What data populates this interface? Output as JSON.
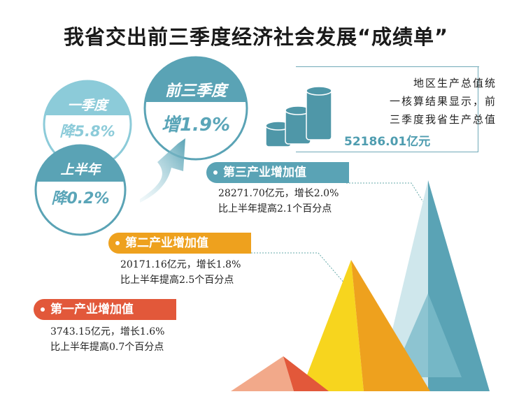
{
  "title": "我省交出前三季度经济社会发展“成绩单”",
  "circles": {
    "q1": {
      "label": "一季度",
      "value": "降5.8%"
    },
    "h1": {
      "label": "上半年",
      "value": "降0.2%"
    },
    "q1_3": {
      "label": "前三季度",
      "value": "增1.9%"
    }
  },
  "gdp": {
    "lines": [
      "地区生产总值统",
      "一核算结果显示，前",
      "三季度我省生产总值"
    ],
    "value": "52186.01亿元",
    "icon": "coin-stack-icon"
  },
  "industries": [
    {
      "label": "第三产业增加值",
      "line1": "28271.70亿元，增长2.0%",
      "line2": "比上半年提高2.1个百分点",
      "color": "#5aa3b5"
    },
    {
      "label": "第二产业增加值",
      "line1": "20171.16亿元，增长1.8%",
      "line2": "比上半年提高2.5个百分点",
      "color": "#eea11e"
    },
    {
      "label": "第一产业增加值",
      "line1": "3743.15亿元，增长1.6%",
      "line2": "比上半年提高0.7个百分点",
      "color": "#e2583a"
    }
  ],
  "colors": {
    "teal": "#5aa3b5",
    "light_teal": "#8ccbd9",
    "orange": "#eea11e",
    "yellow": "#f7d51e",
    "red": "#e2583a"
  }
}
